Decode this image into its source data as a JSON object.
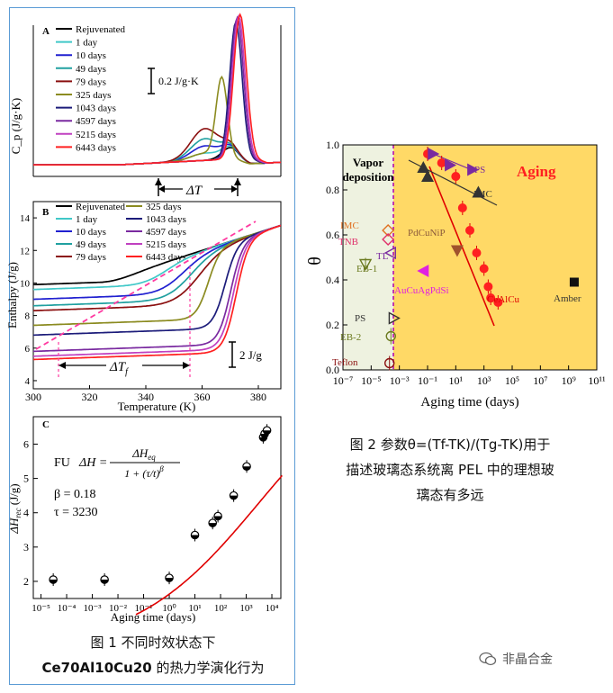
{
  "colors": {
    "rejuvenated": "#000000",
    "d1": "#40c8c8",
    "d10": "#2020d0",
    "d49": "#20a0a0",
    "d79": "#8b1010",
    "d325": "#8b8b20",
    "d1043": "#1c1c7a",
    "d4597": "#7a2aa0",
    "d5215": "#c040c0",
    "d6443": "#ff2020",
    "aging_bg": "#ffd966",
    "vapor_bg": "#eef2e0",
    "fit": "#e00000",
    "border": "#5b9bd5"
  },
  "panelA": {
    "label": "A",
    "ylabel": "C_p (J/g·K)",
    "scale_bar": "0.2 J/g·K",
    "delta_label": "ΔT",
    "legend": [
      "Rejuvenated",
      "1 day",
      "10 days",
      "49 days",
      "79 days",
      "325 days",
      "1043 days",
      "4597 days",
      "5215 days",
      "6443 days"
    ]
  },
  "panelB": {
    "label": "B",
    "ylabel": "Enthalpy (J/g)",
    "xlabel": "Temperature (K)",
    "scale_bar": "2 J/g",
    "delta_label": "ΔT",
    "delta_sub": "f",
    "legend_col1": [
      "Rejuvenated",
      "1 day",
      "10 days",
      "49 days",
      "79 days"
    ],
    "legend_col2": [
      "325 days",
      "1043 days",
      "4597 days",
      "5215 days",
      "6443 days"
    ],
    "xticks": [
      "300",
      "320",
      "340",
      "360",
      "380"
    ],
    "yticks": [
      "4",
      "6",
      "8",
      "10",
      "12",
      "14"
    ]
  },
  "panelC": {
    "label": "C",
    "xlabel": "Aging time (days)",
    "ylabel": "ΔH_rec (J/g)",
    "fit_label": "FU",
    "eq_left": "ΔH =",
    "eq_num": "ΔH",
    "eq_num_sub": "eq",
    "eq_den": "1 + (τ/t)",
    "eq_den_sup": "β",
    "beta": "β = 0.18",
    "tau": "τ = 3230",
    "yticks": [
      "2",
      "3",
      "4",
      "5",
      "6"
    ],
    "xticks": [
      "10⁻⁵",
      "10⁻⁴",
      "10⁻³",
      "10⁻²",
      "10⁻¹",
      "10⁰",
      "10¹",
      "10²",
      "10³",
      "10⁴"
    ]
  },
  "fig2": {
    "xlabel": "Aging time (days)",
    "ylabel": "θ",
    "vapor_label_1": "Vapor",
    "vapor_label_2": "deposition",
    "aging_label": "Aging",
    "yticks": [
      "0.0",
      "0.2",
      "0.4",
      "0.6",
      "0.8",
      "1.0"
    ],
    "xticks": [
      "10⁻⁷",
      "10⁻⁵",
      "10⁻³",
      "10⁻¹",
      "10¹",
      "10³",
      "10⁵",
      "10⁷",
      "10⁹",
      "10¹¹"
    ],
    "labels": [
      "IMC",
      "TNB",
      "TL",
      "EB-1",
      "PS",
      "EB-2",
      "Teflon",
      "PdCuNiP",
      "AuCuAgPdSi",
      "PS",
      "IMC",
      "CeAlCu",
      "Amber"
    ]
  },
  "captions": {
    "fig1_line1": "图 1  不同时效状态下",
    "fig1_line2_bold": "Ce70Al10Cu20",
    "fig1_line2_rest": " 的热力学演化行为",
    "fig2_line1": "图 2  参数θ=(Tf-TK)/(Tg-TK)用于",
    "fig2_line2": "描述玻璃态系统离 PEL 中的理想玻",
    "fig2_line3": "璃态有多远"
  },
  "watermark": "非晶合金",
  "chart_data": [
    {
      "type": "line",
      "title": "A",
      "xlabel": "",
      "ylabel": "C_p (J/g·K)",
      "x": [
        300,
        320,
        340,
        350,
        360,
        365,
        370,
        372,
        375,
        380,
        385
      ],
      "series": [
        {
          "name": "Rejuvenated",
          "values": [
            0.02,
            0.03,
            0.05,
            0.08,
            0.1,
            0.15,
            0.3,
            0.35,
            0.15,
            0.05,
            0.03
          ]
        },
        {
          "name": "79 days",
          "values": [
            0.02,
            0.03,
            0.08,
            0.15,
            0.28,
            0.2,
            0.3,
            0.35,
            0.15,
            0.05,
            0.03
          ]
        },
        {
          "name": "325 days",
          "values": [
            0.02,
            0.03,
            0.05,
            0.08,
            0.12,
            0.2,
            0.55,
            0.4,
            0.1,
            0.05,
            0.03
          ]
        },
        {
          "name": "6443 days",
          "values": [
            0.02,
            0.02,
            0.03,
            0.04,
            0.06,
            0.1,
            0.4,
            0.95,
            1.0,
            0.1,
            0.03
          ]
        }
      ]
    },
    {
      "type": "line",
      "title": "B",
      "xlabel": "Temperature (K)",
      "ylabel": "Enthalpy (J/g)",
      "xlim": [
        300,
        388
      ],
      "ylim": [
        3.5,
        15
      ],
      "x": [
        300,
        320,
        340,
        355,
        365,
        372,
        378,
        385
      ],
      "series": [
        {
          "name": "Rejuvenated",
          "values": [
            9.9,
            9.9,
            10.0,
            10.2,
            10.8,
            11.6,
            12.5,
            13.3
          ]
        },
        {
          "name": "49 days",
          "values": [
            8.6,
            8.6,
            8.7,
            9.0,
            10.5,
            11.6,
            12.5,
            13.3
          ]
        },
        {
          "name": "325 days",
          "values": [
            7.4,
            7.4,
            7.5,
            7.8,
            9.5,
            11.6,
            12.5,
            13.3
          ]
        },
        {
          "name": "1043 days",
          "values": [
            6.8,
            6.8,
            6.9,
            7.0,
            7.6,
            11.0,
            12.5,
            13.3
          ]
        },
        {
          "name": "6443 days",
          "values": [
            5.3,
            5.3,
            5.4,
            5.5,
            6.0,
            9.5,
            12.5,
            13.3
          ]
        }
      ]
    },
    {
      "type": "scatter",
      "title": "C",
      "xlabel": "Aging time (days)",
      "ylabel": "ΔH_rec (J/g)",
      "ylim": [
        1.5,
        6.8
      ],
      "x": [
        3e-05,
        0.003,
        1,
        10,
        49,
        79,
        325,
        1043,
        4597,
        5215,
        6443
      ],
      "series": [
        {
          "name": "data",
          "values": [
            2.05,
            2.05,
            2.1,
            3.35,
            3.7,
            3.9,
            4.5,
            5.35,
            6.2,
            6.3,
            6.4
          ]
        }
      ]
    },
    {
      "type": "scatter",
      "title": "θ",
      "xlabel": "Aging time (days)",
      "ylabel": "θ",
      "ylim": [
        0,
        1
      ],
      "x": [
        0.1,
        1,
        10,
        30,
        100,
        300,
        1000,
        2000,
        3000,
        10000
      ],
      "series": [
        {
          "name": "CeAlCu",
          "values": [
            0.96,
            0.92,
            0.86,
            0.72,
            0.62,
            0.52,
            0.45,
            0.37,
            0.32,
            0.3
          ]
        }
      ]
    }
  ]
}
